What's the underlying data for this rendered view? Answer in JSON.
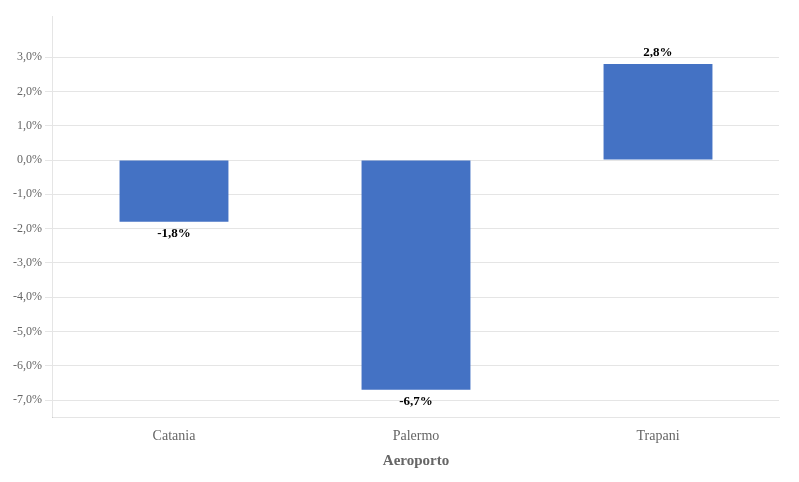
{
  "chart_data": {
    "type": "bar",
    "x_label": "Aeroporto",
    "categories": [
      "Catania",
      "Palermo",
      "Trapani"
    ],
    "values": [
      -1.8,
      -6.7,
      2.8
    ],
    "value_labels": [
      "-1,8%",
      "-6,7%",
      "2,8%"
    ],
    "data_labels": true,
    "color": "#4472C4",
    "ylim": [
      -7.5,
      4.2
    ],
    "yticks": [
      {
        "value": -7.0,
        "label": "-7,0%"
      },
      {
        "value": -6.0,
        "label": "-6,0%"
      },
      {
        "value": -5.0,
        "label": "-5,0%"
      },
      {
        "value": -4.0,
        "label": "-4,0%"
      },
      {
        "value": -3.0,
        "label": "-3,0%"
      },
      {
        "value": -2.0,
        "label": "-2,0%"
      },
      {
        "value": -1.0,
        "label": "-1,0%"
      },
      {
        "value": 0.0,
        "label": "0,0%"
      },
      {
        "value": 1.0,
        "label": "1,0%"
      },
      {
        "value": 2.0,
        "label": "2,0%"
      },
      {
        "value": 3.0,
        "label": "3,0%"
      }
    ],
    "grid": true
  }
}
